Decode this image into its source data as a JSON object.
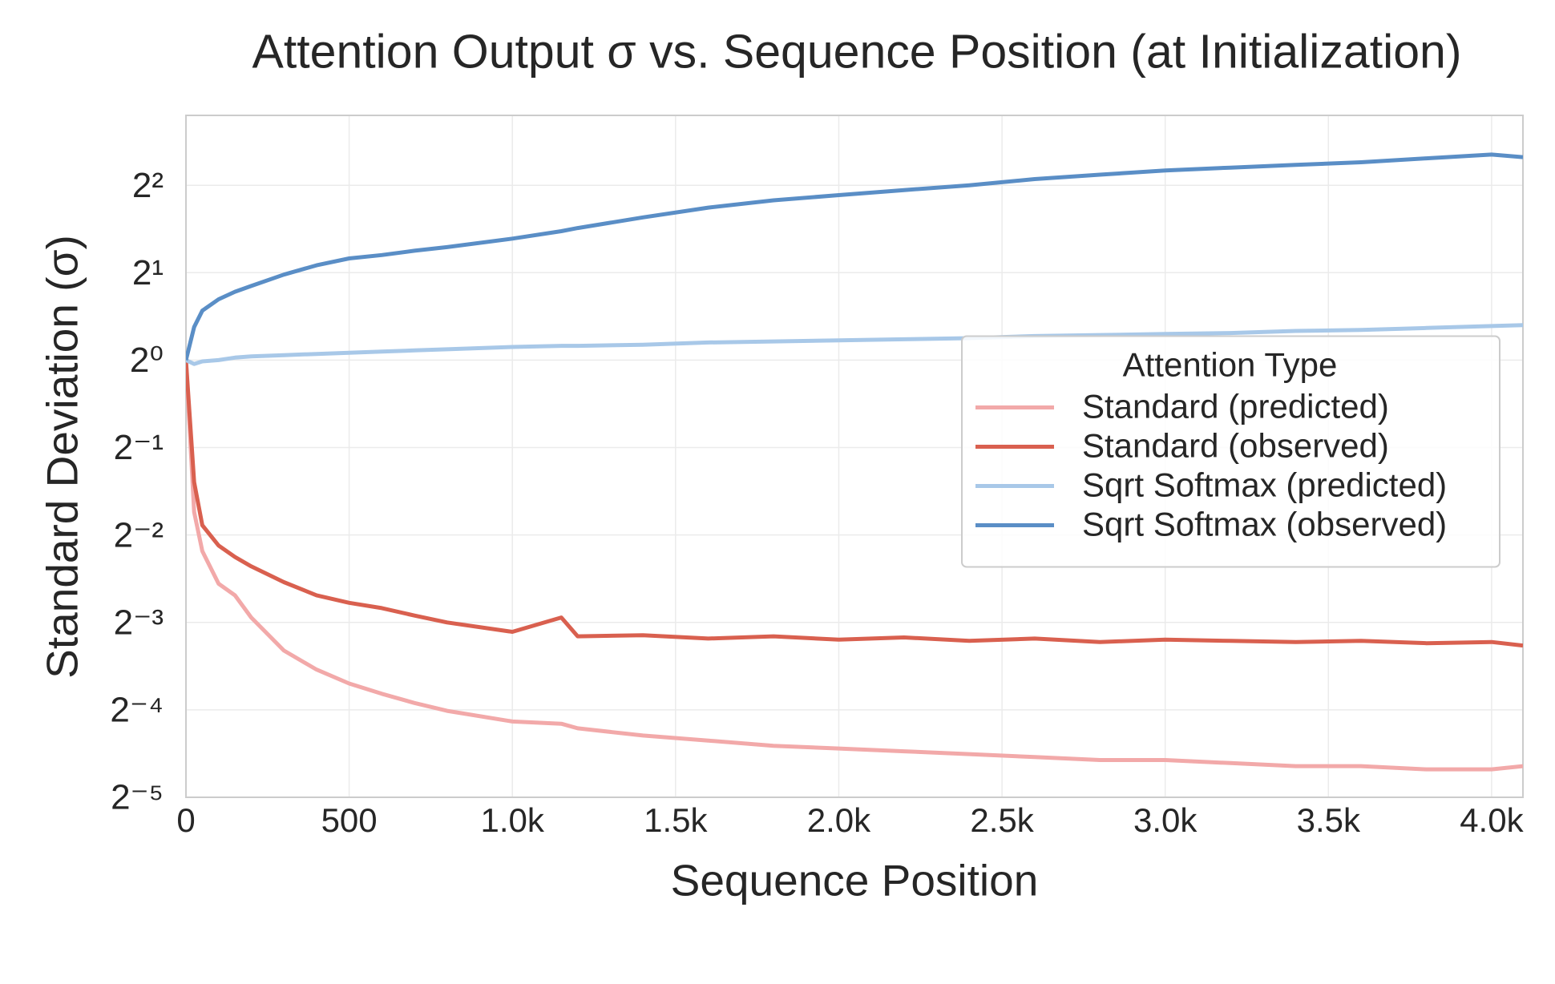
{
  "chart_data": {
    "type": "line",
    "title": "Attention Output σ vs. Sequence Position (at Initialization)",
    "x_label": "Sequence Position",
    "y_label": "Standard Deviation (σ)",
    "yscale": "log",
    "grid": true,
    "legend_title": "Attention Type",
    "legend_loc": "center right",
    "xlim": [
      0,
      4096
    ],
    "ylim": [
      0.03125,
      6.96
    ],
    "xticks": [
      0,
      500,
      {
        "value": 1000,
        "label": "1.0k"
      },
      {
        "value": 1500,
        "label": "1.5k"
      },
      {
        "value": 2000,
        "label": "2.0k"
      },
      {
        "value": 2500,
        "label": "2.5k"
      },
      {
        "value": 3000,
        "label": "3.0k"
      },
      {
        "value": 3500,
        "label": "3.5k"
      },
      {
        "value": 4000,
        "label": "4.0k"
      }
    ],
    "yticks": [
      {
        "value": 4,
        "label": "2²"
      },
      {
        "value": 2,
        "label": "2¹"
      },
      {
        "value": 1,
        "label": "2⁰"
      },
      {
        "value": 0.5,
        "label": "2⁻¹"
      },
      {
        "value": 0.25,
        "label": "2⁻²"
      },
      {
        "value": 0.125,
        "label": "2⁻³"
      },
      {
        "value": 0.0625,
        "label": "2⁻⁴"
      },
      {
        "value": 0.03125,
        "label": "2⁻⁵"
      }
    ],
    "x": [
      0,
      25,
      50,
      100,
      150,
      200,
      300,
      400,
      500,
      600,
      700,
      800,
      1000,
      1150,
      1200,
      1400,
      1600,
      1800,
      2000,
      2200,
      2400,
      2600,
      2800,
      3000,
      3200,
      3400,
      3600,
      3800,
      4000,
      4096
    ],
    "series": [
      {
        "name": "Standard (predicted)",
        "color": "#f2a9a9",
        "values": [
          1,
          0.3,
          0.22,
          0.17,
          0.155,
          0.13,
          0.1,
          0.086,
          0.077,
          0.071,
          0.066,
          0.062,
          0.057,
          0.056,
          0.054,
          0.051,
          0.049,
          0.047,
          0.046,
          0.045,
          0.044,
          0.043,
          0.042,
          0.042,
          0.041,
          0.04,
          0.04,
          0.039,
          0.039,
          0.04
        ]
      },
      {
        "name": "Standard (observed)",
        "color": "#d9604f",
        "values": [
          1,
          0.38,
          0.27,
          0.23,
          0.21,
          0.195,
          0.172,
          0.155,
          0.146,
          0.14,
          0.132,
          0.125,
          0.116,
          0.13,
          0.112,
          0.113,
          0.11,
          0.112,
          0.109,
          0.111,
          0.108,
          0.11,
          0.107,
          0.109,
          0.108,
          0.107,
          0.108,
          0.106,
          0.107,
          0.104
        ]
      },
      {
        "name": "Sqrt Softmax (predicted)",
        "color": "#a8c8e8",
        "values": [
          1,
          0.97,
          0.99,
          1.0,
          1.02,
          1.03,
          1.04,
          1.05,
          1.06,
          1.07,
          1.08,
          1.09,
          1.11,
          1.12,
          1.12,
          1.13,
          1.15,
          1.16,
          1.17,
          1.18,
          1.19,
          1.21,
          1.22,
          1.23,
          1.24,
          1.26,
          1.27,
          1.29,
          1.31,
          1.32
        ]
      },
      {
        "name": "Sqrt Softmax (observed)",
        "color": "#5a8ec6",
        "values": [
          1,
          1.3,
          1.48,
          1.62,
          1.72,
          1.8,
          1.97,
          2.12,
          2.24,
          2.3,
          2.38,
          2.45,
          2.62,
          2.78,
          2.85,
          3.1,
          3.35,
          3.55,
          3.7,
          3.85,
          4.0,
          4.2,
          4.35,
          4.5,
          4.6,
          4.7,
          4.8,
          4.95,
          5.1,
          5.0
        ]
      }
    ]
  }
}
